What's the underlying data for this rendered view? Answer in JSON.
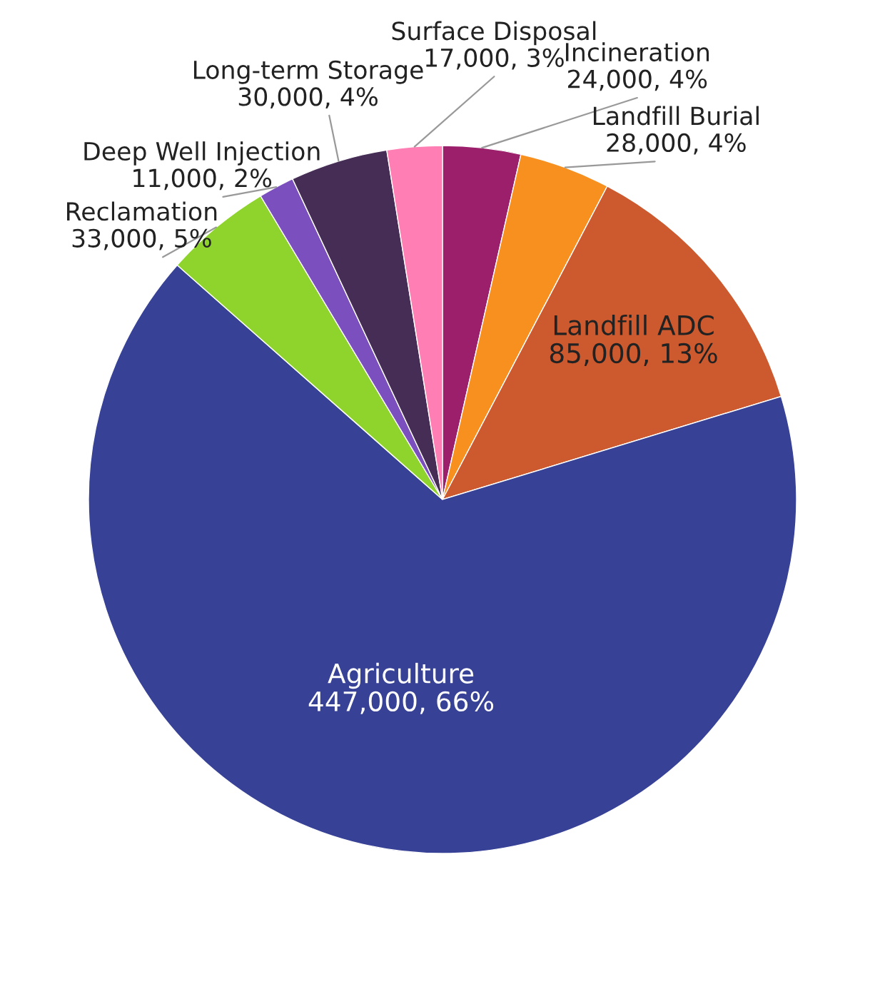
{
  "chart_data": {
    "type": "pie",
    "categories": [
      "Incineration",
      "Landfill Burial",
      "Landfill ADC",
      "Agriculture",
      "Reclamation",
      "Deep Well Injection",
      "Long-term Storage",
      "Surface Disposal"
    ],
    "values": [
      24000,
      28000,
      85000,
      447000,
      33000,
      11000,
      30000,
      17000
    ],
    "value_labels": [
      "24,000, 4%",
      "28,000, 4%",
      "85,000, 13%",
      "447,000, 66%",
      "33,000, 5%",
      "11,000, 2%",
      "30,000, 4%",
      "17,000, 3%"
    ],
    "colors": [
      "#9b1f6a",
      "#f7901e",
      "#cc5a2e",
      "#374196",
      "#8ed42c",
      "#7b4fbd",
      "#452d55",
      "#ff7eb3"
    ],
    "legend": false
  }
}
